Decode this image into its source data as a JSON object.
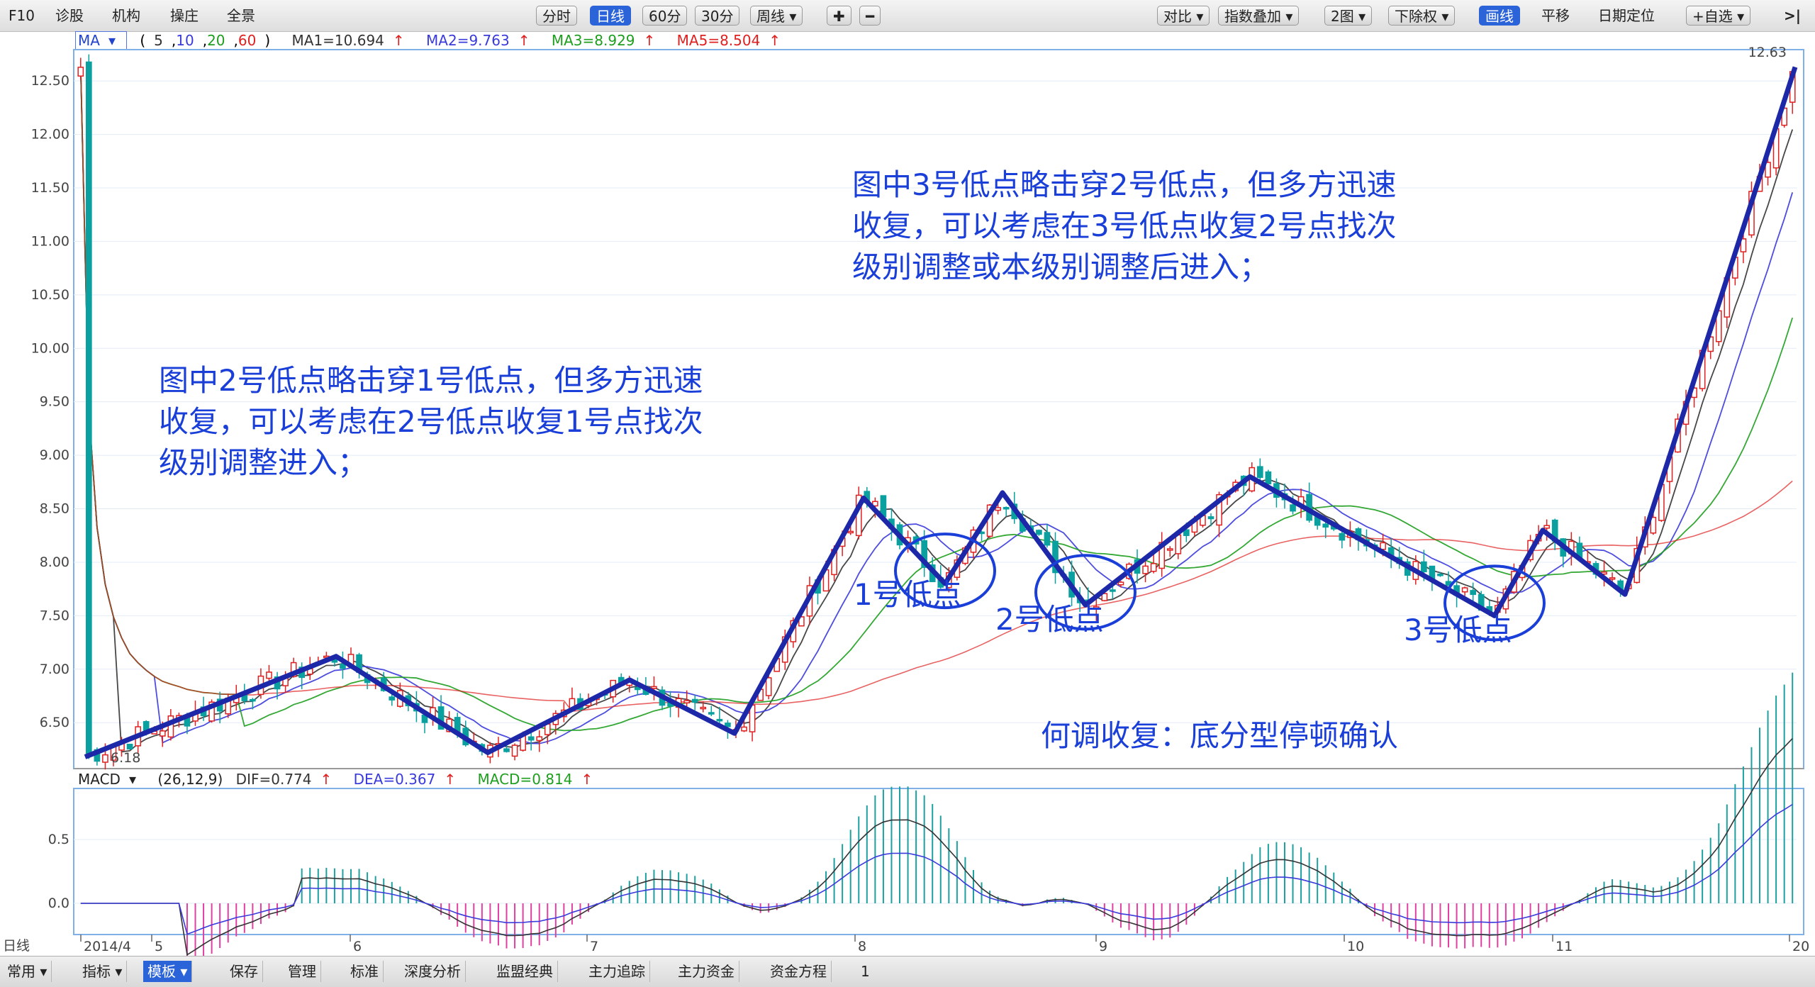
{
  "toolbar": {
    "left": [
      "F10",
      "诊股",
      "机构",
      "操庄",
      "全景"
    ],
    "period_tabs": [
      "分时",
      "日线",
      "60分",
      "30分",
      "周线"
    ],
    "period_selected": "日线",
    "right": [
      "对比",
      "指数叠加",
      "2图",
      "下除权",
      "画线",
      "平移",
      "日期定位",
      "+自选"
    ],
    "right_selected": "画线"
  },
  "ma_bar": {
    "name": "MA",
    "params_prefix": "(",
    "params": [
      "5",
      "10",
      "20",
      "60"
    ],
    "params_suffix": ")",
    "ma1": "MA1=10.694",
    "ma2": "MA2=9.763",
    "ma3": "MA3=8.929",
    "ma5": "MA5=8.504",
    "colors": {
      "ma1": "#333333",
      "ma2": "#3a3adc",
      "ma3": "#1e9e1e",
      "ma5": "#e02020"
    }
  },
  "macd_bar": {
    "name": "MACD",
    "params": "(26,12,9)",
    "dif": "DIF=0.774",
    "dea": "DEA=0.367",
    "macd": "MACD=0.814"
  },
  "annotations": {
    "left": [
      "图中2号低点略击穿1号低点，但多方迅速",
      "收复，可以考虑在2号低点收复1号点找次",
      "级别调整进入；"
    ],
    "right": [
      "图中3号低点略击穿2号低点，但多方迅速",
      "收复，可以考虑在3号低点收复2号点找次",
      "级别调整或本级别调整后进入；"
    ],
    "bottom": "何调收复：底分型停顿确认",
    "low1": "1号低点",
    "low2": "2号低点",
    "low3": "3号低点"
  },
  "axis": {
    "price_ticks": [
      "12.50",
      "12.00",
      "11.50",
      "11.00",
      "10.50",
      "10.00",
      "9.50",
      "9.00",
      "8.50",
      "8.00",
      "7.50",
      "7.00",
      "6.50"
    ],
    "macd_ticks": [
      "0.5",
      "0.0"
    ],
    "dates": [
      "2014/4",
      "5",
      "6",
      "7",
      "8",
      "9",
      "10",
      "11",
      "20"
    ],
    "high_label": "12.63",
    "low_label": "6.18",
    "period_label": "日线"
  },
  "bottom_tabs": [
    "常用",
    "指标",
    "模板",
    "保存",
    "管理",
    "标准",
    "深度分析",
    "监盟经典",
    "主力追踪",
    "主力资金",
    "资金方程",
    "1"
  ],
  "bottom_selected": "模板",
  "chart_data": {
    "type": "candlestick",
    "price_range": [
      6.15,
      12.7
    ],
    "macd_range": [
      -0.2,
      0.8
    ],
    "zigzag": [
      {
        "date": "2014/4",
        "price": 6.18
      },
      {
        "date": "6",
        "price": 7.12
      },
      {
        "date": "6",
        "price": 6.22
      },
      {
        "date": "7",
        "price": 6.9
      },
      {
        "date": "7",
        "price": 6.4
      },
      {
        "date": "8",
        "price": 8.6
      },
      {
        "date": "8",
        "price": 7.8,
        "label": "1号低点"
      },
      {
        "date": "8",
        "price": 8.65
      },
      {
        "date": "9",
        "price": 7.6,
        "label": "2号低点"
      },
      {
        "date": "9",
        "price": 8.8
      },
      {
        "date": "10",
        "price": 7.5,
        "label": "3号低点"
      },
      {
        "date": "11",
        "price": 8.3
      },
      {
        "date": "11",
        "price": 7.7
      },
      {
        "date": "20",
        "price": 12.63
      }
    ],
    "key_points": [
      6.18,
      7.12,
      6.22,
      6.9,
      6.4,
      8.6,
      7.8,
      8.65,
      7.6,
      8.8,
      7.5,
      8.3,
      7.7,
      12.63
    ]
  }
}
